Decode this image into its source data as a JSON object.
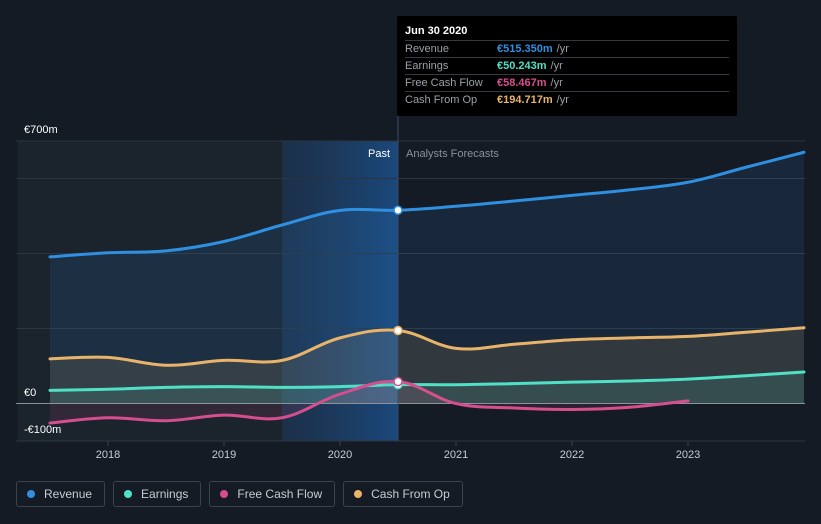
{
  "chart_data": {
    "type": "area",
    "currency": "€",
    "x_domain": [
      2017.5,
      2024.0
    ],
    "ylim": [
      -100,
      700
    ],
    "y_tick_labels": [
      {
        "value": 700,
        "label": "€700m"
      },
      {
        "value": 0,
        "label": "€0"
      },
      {
        "value": -100,
        "label": "-€100m"
      }
    ],
    "gridlines_y": [
      700,
      600,
      400,
      200,
      0,
      -100
    ],
    "x_ticks": [
      {
        "value": 2018,
        "label": "2018"
      },
      {
        "value": 2019,
        "label": "2019"
      },
      {
        "value": 2020,
        "label": "2020"
      },
      {
        "value": 2021,
        "label": "2021"
      },
      {
        "value": 2022,
        "label": "2022"
      },
      {
        "value": 2023,
        "label": "2023"
      }
    ],
    "divider_x": 2020.5,
    "past_highlight_start": 2019.5,
    "past_label": "Past",
    "forecast_label": "Analysts Forecasts",
    "series": [
      {
        "name": "Revenue",
        "color": "#2f8fe0",
        "fill": true,
        "x": [
          2017.5,
          2018.0,
          2018.5,
          2019.0,
          2019.5,
          2020.0,
          2020.5,
          2021.0,
          2021.5,
          2022.0,
          2022.5,
          2023.0,
          2023.5,
          2024.0
        ],
        "values": [
          391,
          402,
          407,
          432,
          476,
          515,
          515.35,
          526,
          540,
          555,
          570,
          590,
          630,
          670
        ]
      },
      {
        "name": "Cash From Op",
        "color": "#e9b46a",
        "fill": true,
        "x": [
          2017.5,
          2018.0,
          2018.5,
          2019.0,
          2019.5,
          2020.0,
          2020.5,
          2021.0,
          2021.5,
          2022.0,
          2022.5,
          2023.0,
          2023.5,
          2024.0
        ],
        "values": [
          119,
          123,
          102,
          115,
          115,
          175,
          194.717,
          147,
          158,
          170,
          175,
          179,
          190,
          202
        ]
      },
      {
        "name": "Earnings",
        "color": "#4fe0c6",
        "fill": true,
        "x": [
          2017.5,
          2018.0,
          2018.5,
          2019.0,
          2019.5,
          2020.0,
          2020.5,
          2021.0,
          2021.5,
          2022.0,
          2022.5,
          2023.0,
          2023.5,
          2024.0
        ],
        "values": [
          35,
          38,
          43,
          45,
          43,
          45,
          50.243,
          50,
          53,
          57,
          60,
          65,
          74,
          84
        ]
      },
      {
        "name": "Free Cash Flow",
        "color": "#d54f8e",
        "fill": true,
        "x": [
          2017.5,
          2018.0,
          2018.5,
          2019.0,
          2019.5,
          2020.0,
          2020.5,
          2021.0,
          2021.5,
          2022.0,
          2022.5,
          2023.0
        ],
        "values": [
          -52,
          -38,
          -46,
          -31,
          -38,
          25,
          58.467,
          0,
          -12,
          -16,
          -10,
          7
        ]
      }
    ]
  },
  "tooltip": {
    "date": "Jun 30 2020",
    "unit": "/yr",
    "rows": [
      {
        "label": "Revenue",
        "value": "€515.350m",
        "color": "#2f8fe0"
      },
      {
        "label": "Earnings",
        "value": "€50.243m",
        "color": "#4fe0c6"
      },
      {
        "label": "Free Cash Flow",
        "value": "€58.467m",
        "color": "#d54f8e"
      },
      {
        "label": "Cash From Op",
        "value": "€194.717m",
        "color": "#e9b46a"
      }
    ]
  },
  "legend": [
    {
      "label": "Revenue",
      "color": "#2f8fe0"
    },
    {
      "label": "Earnings",
      "color": "#4fe0c6"
    },
    {
      "label": "Free Cash Flow",
      "color": "#d54f8e"
    },
    {
      "label": "Cash From Op",
      "color": "#e9b46a"
    }
  ]
}
